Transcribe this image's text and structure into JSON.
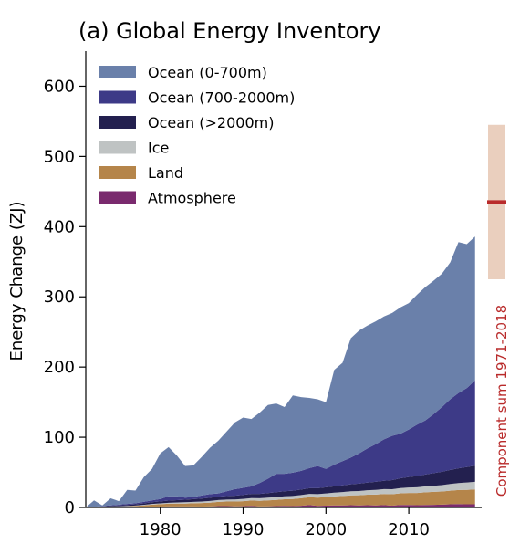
{
  "chart_data": {
    "type": "area",
    "title": "(a) Global Energy Inventory",
    "xlabel": "",
    "ylabel": "Energy Change (ZJ)",
    "xlim": [
      1971,
      2018.8
    ],
    "ylim": [
      0,
      650
    ],
    "xticks": [
      "1980",
      "1990",
      "2000",
      "2010"
    ],
    "yticks": [
      "0",
      "100",
      "200",
      "300",
      "400",
      "500",
      "600"
    ],
    "grid": false,
    "legend_position": "top-left",
    "stacking": "stacked-bottom-to-top",
    "x": [
      1971,
      1972,
      1973,
      1974,
      1975,
      1976,
      1977,
      1978,
      1979,
      1980,
      1981,
      1982,
      1983,
      1984,
      1985,
      1986,
      1987,
      1988,
      1989,
      1990,
      1991,
      1992,
      1993,
      1994,
      1995,
      1996,
      1997,
      1998,
      1999,
      2000,
      2001,
      2002,
      2003,
      2004,
      2005,
      2006,
      2007,
      2008,
      2009,
      2010,
      2011,
      2012,
      2013,
      2014,
      2015,
      2016,
      2017,
      2018
    ],
    "series": [
      {
        "name": "Atmosphere",
        "color": "#7a2a6e",
        "values": [
          0,
          0,
          0,
          0,
          0,
          0,
          0.3,
          0.6,
          1.0,
          1.3,
          1.5,
          1.5,
          1.4,
          1.4,
          1.3,
          1.5,
          2.0,
          2.0,
          1.6,
          1.8,
          2.3,
          1.5,
          1.7,
          2.0,
          2.3,
          2.0,
          2.5,
          3.4,
          2.2,
          2.6,
          2.9,
          3.0,
          3.2,
          3.0,
          3.2,
          3.0,
          3.4,
          2.6,
          3.5,
          3.6,
          3.2,
          3.6,
          3.8,
          4.0,
          4.5,
          4.8,
          4.5,
          4.6
        ]
      },
      {
        "name": "Land",
        "color": "#b5854a",
        "values": [
          0,
          0.3,
          0.6,
          1.0,
          1.3,
          1.6,
          1.9,
          2.4,
          3.0,
          3.4,
          3.8,
          4.0,
          4.2,
          4.6,
          5.0,
          5.4,
          6.0,
          6.4,
          6.8,
          7.2,
          7.6,
          8.0,
          8.4,
          8.8,
          9.4,
          10.0,
          10.6,
          11.2,
          11.8,
          12.2,
          12.8,
          13.4,
          14.0,
          14.4,
          15.0,
          15.4,
          15.8,
          16.2,
          16.6,
          17.0,
          17.4,
          18.0,
          18.4,
          18.8,
          19.4,
          20.0,
          20.6,
          21.0
        ]
      },
      {
        "name": "Ice",
        "color": "#bfc3c3",
        "values": [
          0,
          0.1,
          0.2,
          0.3,
          0.4,
          0.5,
          0.6,
          0.8,
          1.0,
          1.2,
          1.4,
          1.6,
          1.8,
          2.0,
          2.2,
          2.4,
          2.6,
          2.8,
          3.0,
          3.2,
          3.4,
          3.6,
          3.8,
          4.0,
          4.2,
          4.4,
          4.6,
          4.8,
          5.0,
          5.2,
          5.4,
          5.6,
          5.8,
          6.0,
          6.3,
          6.6,
          6.9,
          7.2,
          7.5,
          7.8,
          8.1,
          8.4,
          8.7,
          9.0,
          9.5,
          10.0,
          10.5,
          11.0
        ]
      },
      {
        "name": "Ocean (>2000m)",
        "color": "#23204f",
        "values": [
          0,
          0.3,
          0.6,
          0.9,
          1.2,
          1.5,
          1.8,
          2.1,
          2.4,
          2.7,
          3.0,
          3.3,
          3.6,
          3.9,
          4.2,
          4.5,
          4.8,
          5.1,
          5.4,
          5.7,
          6.0,
          6.3,
          6.6,
          6.9,
          7.2,
          7.5,
          7.8,
          8.1,
          8.4,
          8.7,
          9.0,
          9.5,
          10.0,
          10.5,
          11.0,
          11.5,
          12.0,
          13.0,
          14.0,
          15.0,
          16.0,
          17.0,
          18.0,
          19.0,
          20.0,
          21.0,
          22.0,
          23.0
        ]
      },
      {
        "name": "Ocean (700-2000m)",
        "color": "#3d3a87",
        "values": [
          0,
          0.3,
          0.6,
          0.8,
          1.1,
          1.4,
          1.4,
          2.1,
          2.6,
          3.4,
          6.3,
          5.6,
          3.0,
          3.1,
          4.3,
          5.2,
          4.6,
          6.7,
          9.2,
          10.1,
          10.7,
          15.6,
          20.5,
          26.3,
          24.9,
          25.6,
          26.6,
          28.5,
          31.6,
          26.3,
          30.9,
          34.5,
          38.0,
          43.1,
          48.5,
          53.5,
          58.9,
          63.0,
          63.4,
          67.6,
          73.3,
          77.0,
          84.1,
          92.2,
          100.6,
          107.2,
          112.4,
          121.4
        ]
      },
      {
        "name": "Ocean (0-700m)",
        "color": "#6a80aa",
        "values": [
          0,
          9.0,
          1.0,
          10.0,
          5.0,
          20.0,
          18.0,
          35.0,
          45.0,
          65.0,
          70.0,
          58.0,
          45.0,
          45.0,
          55.0,
          66.0,
          75.0,
          85.0,
          95.0,
          100.0,
          96.0,
          100.0,
          105.0,
          100.0,
          95.0,
          110.0,
          105.0,
          100.0,
          95.0,
          95.0,
          135.0,
          140.0,
          170.0,
          175.0,
          175.0,
          175.0,
          175.0,
          175.0,
          180.0,
          180.0,
          185.0,
          190.0,
          190.0,
          190.0,
          195.0,
          215.0,
          205.0,
          205.0
        ]
      }
    ],
    "component_sum_range": {
      "label": "Component sum 1971-2018",
      "central": 435,
      "low": 325,
      "high": 545,
      "bar_color": "#eacfbe",
      "line_color": "#b92b2b",
      "label_color": "#b92b2b"
    }
  }
}
